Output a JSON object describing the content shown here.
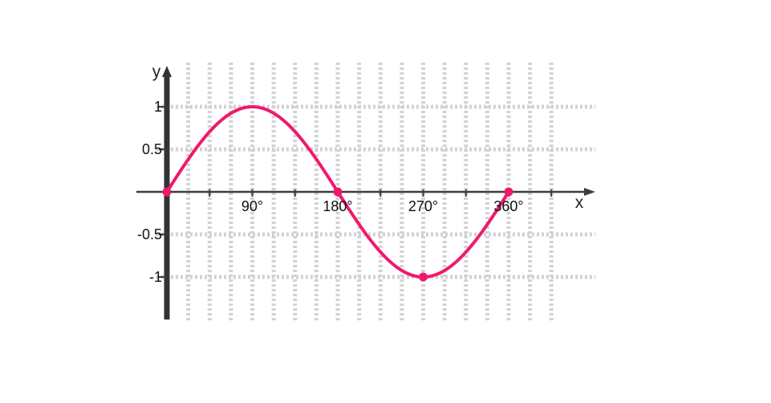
{
  "chart_data": {
    "type": "line",
    "function": "y = sin x",
    "x_ticks": [
      {
        "value": 90,
        "label": "90°"
      },
      {
        "value": 180,
        "label": "180°"
      },
      {
        "value": 270,
        "label": "270°"
      },
      {
        "value": 360,
        "label": "360°"
      }
    ],
    "y_ticks": [
      {
        "value": 1,
        "label": "1"
      },
      {
        "value": 0.5,
        "label": "0.5"
      },
      {
        "value": -0.5,
        "label": "-0.5"
      },
      {
        "value": -1,
        "label": "-1"
      }
    ],
    "xlabel": "x",
    "ylabel": "y",
    "xlim": [
      0,
      405
    ],
    "ylim": [
      -1.15,
      1.2
    ],
    "grid": true,
    "grid_x_values": [
      22.5,
      45,
      67.5,
      90,
      112.5,
      135,
      157.5,
      180,
      202.5,
      225,
      247.5,
      270,
      292.5,
      315,
      337.5,
      360,
      382.5,
      405
    ],
    "grid_y_values": [
      -1,
      -0.5,
      0.5,
      1
    ],
    "series": [
      {
        "color": "#f0196e",
        "x": [
          0,
          90,
          180,
          270,
          360
        ],
        "y": [
          0,
          1,
          0,
          -1,
          0
        ]
      }
    ],
    "marked_points": [
      {
        "x": 0,
        "y": 0
      },
      {
        "x": 180,
        "y": 0
      },
      {
        "x": 270,
        "y": -1
      },
      {
        "x": 360,
        "y": 0
      }
    ]
  }
}
